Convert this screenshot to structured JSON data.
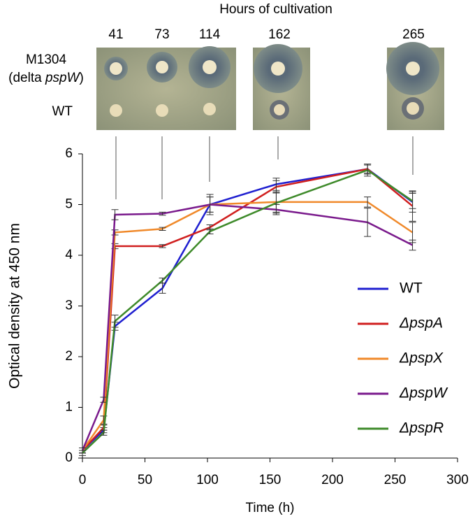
{
  "plates": {
    "title": "Hours of cultivation",
    "hours": [
      "41",
      "73",
      "114",
      "162",
      "265"
    ],
    "mutant_label": [
      "M1304",
      "(delta ",
      "pspW",
      ")"
    ],
    "wt_label": "WT"
  },
  "chart_data": {
    "type": "line",
    "x_label": "Time (h)",
    "y_label": "Optical density at 450 nm",
    "x": [
      0,
      17,
      26,
      64,
      102,
      155,
      228,
      264
    ],
    "series": [
      {
        "name": "WT",
        "color": "#1f1fd0",
        "font_style": "normal",
        "values": [
          0.15,
          0.55,
          2.6,
          3.35,
          5.0,
          5.4,
          5.7,
          5.05
        ],
        "errors": [
          0.05,
          0.05,
          0.08,
          0.1,
          0.15,
          0.12,
          0.08,
          0.2
        ]
      },
      {
        "name": "ΔpspA",
        "color": "#d01f1f",
        "font_style": "italic",
        "values": [
          0.15,
          0.6,
          4.18,
          4.18,
          4.55,
          5.35,
          5.7,
          4.97
        ],
        "errors": [
          0.05,
          0.05,
          0.05,
          0.03,
          0.05,
          0.12,
          0.1,
          0.3
        ]
      },
      {
        "name": "ΔpspX",
        "color": "#f0892a",
        "font_style": "italic",
        "values": [
          0.15,
          0.75,
          4.45,
          4.52,
          5.0,
          5.05,
          5.05,
          4.45
        ],
        "errors": [
          0.05,
          0.08,
          0.05,
          0.03,
          0.15,
          0.2,
          0.1,
          0.2
        ]
      },
      {
        "name": "ΔpspW",
        "color": "#7a1a8c",
        "font_style": "italic",
        "values": [
          0.15,
          1.15,
          4.8,
          4.82,
          5.0,
          4.9,
          4.65,
          4.2
        ],
        "errors": [
          0.05,
          0.05,
          0.1,
          0.03,
          0.2,
          0.1,
          0.28,
          0.1
        ]
      },
      {
        "name": "ΔpspR",
        "color": "#3e8a2a",
        "font_style": "italic",
        "values": [
          0.1,
          0.5,
          2.7,
          3.5,
          4.47,
          5.03,
          5.68,
          5.07
        ],
        "errors": [
          0.05,
          0.05,
          0.12,
          0.05,
          0.05,
          0.2,
          0.12,
          0.15
        ]
      }
    ],
    "xlim": [
      0,
      300
    ],
    "xticks": [
      0,
      50,
      100,
      150,
      200,
      250,
      300
    ],
    "ylim": [
      0,
      6
    ],
    "yticks": [
      0,
      1,
      2,
      3,
      4,
      5,
      6
    ],
    "grid": false,
    "legend": "right"
  }
}
